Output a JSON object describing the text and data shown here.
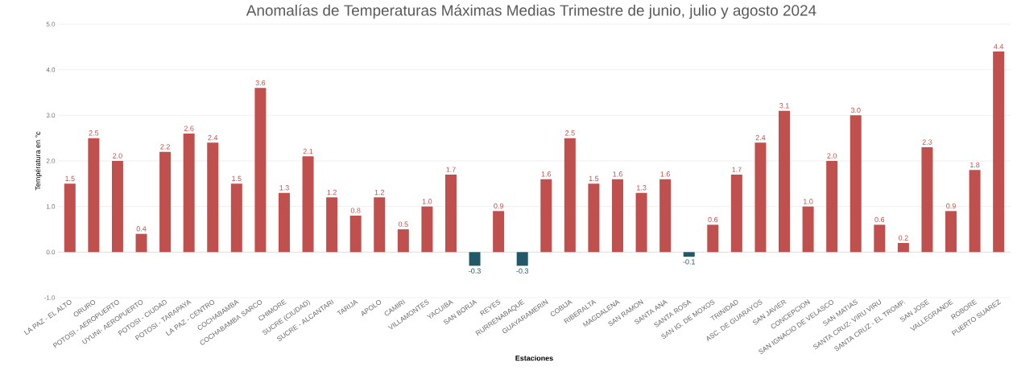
{
  "chart_data": {
    "type": "bar",
    "title": "Anomalías de Temperaturas Máximas Medias Trimestre de junio, julio y agosto 2024",
    "xlabel": "Estaciones",
    "ylabel": "Températura en °c",
    "categories": [
      "LA PAZ - EL ALTO",
      "ORURO",
      "POTOSI - AEROPUERTO",
      "UYUNI- AEROPUERTO",
      "POTOSI - CIUDAD",
      "POTOSI - TARAPAYA",
      "LA PAZ - CENTRO",
      "COCHABAMBA",
      "COCHABAMBA SARCO",
      "CHIMORE",
      "SUCRE (CIUDAD)",
      "SUCRE - ALCANTARI",
      "TARIJA",
      "APOLO",
      "CAMIRI",
      "VILLAMONTES",
      "YACUIBA",
      "SAN BORJA",
      "REYES",
      "RURRENABAQUE",
      "GUAYARAMERIN",
      "COBIJA",
      "RIBERALTA",
      "MAGDALENA",
      "SAN RAMON",
      "SANTA ANA",
      "SANTA ROSA",
      "SAN IG. DE MOXOS",
      "TRINIDAD",
      "ASC. DE GUARAYOS",
      "SAN JAVIER",
      "CONCEPCION",
      "SAN IGNACIO DE VELASCO",
      "SAN MATIAS",
      "SANTA CRUZ- VIRU VIRU",
      "SANTA CRUZ - EL TROMP.",
      "SAN JOSE",
      "VALLEGRANDE",
      "ROBORE",
      "PUERTO SUAREZ"
    ],
    "values": [
      1.5,
      2.5,
      2.0,
      0.4,
      2.2,
      2.6,
      2.4,
      1.5,
      3.6,
      1.3,
      2.1,
      1.2,
      0.8,
      1.2,
      0.5,
      1.0,
      1.7,
      -0.3,
      0.9,
      -0.3,
      1.6,
      2.5,
      1.5,
      1.6,
      1.3,
      1.6,
      -0.1,
      0.6,
      1.7,
      2.4,
      3.1,
      1.0,
      2.0,
      3.0,
      0.6,
      0.2,
      2.3,
      0.9,
      1.8,
      4.4
    ],
    "value_labels": [
      "1.5",
      "2.5",
      "2.0",
      "0.4",
      "2.2",
      "2.6",
      "2.4",
      "1.5",
      "3.6",
      "1.3",
      "2.1",
      "1.2",
      "0.8",
      "1.2",
      "0.5",
      "1.0",
      "1.7",
      "-0.3",
      "0.9",
      "-0.3",
      "1.6",
      "2.5",
      "1.5",
      "1.6",
      "1.3",
      "1.6",
      "-0.1",
      "0.6",
      "1.7",
      "2.4",
      "3.1",
      "1.0",
      "2.0",
      "3.0",
      "0.6",
      "0.2",
      "2.3",
      "0.9",
      "1.8",
      "4.4"
    ],
    "colors": [
      "#c0504d",
      "#c0504d",
      "#c0504d",
      "#c0504d",
      "#c0504d",
      "#c0504d",
      "#c0504d",
      "#c0504d",
      "#c0504d",
      "#c0504d",
      "#c0504d",
      "#c0504d",
      "#c0504d",
      "#c0504d",
      "#c0504d",
      "#c0504d",
      "#c0504d",
      "#215968",
      "#c0504d",
      "#215968",
      "#c0504d",
      "#c0504d",
      "#c0504d",
      "#c0504d",
      "#c0504d",
      "#c0504d",
      "#215968",
      "#c0504d",
      "#c0504d",
      "#c0504d",
      "#c0504d",
      "#c0504d",
      "#c0504d",
      "#c0504d",
      "#c0504d",
      "#c0504d",
      "#c0504d",
      "#c0504d",
      "#c0504d",
      "#c0504d"
    ],
    "ylim": [
      -1.0,
      5.0
    ],
    "yticks": [
      {
        "value": -1.0,
        "label": "-1.0"
      },
      {
        "value": 0.0,
        "label": "0.0"
      },
      {
        "value": 1.0,
        "label": "1.0"
      },
      {
        "value": 2.0,
        "label": "2.0"
      },
      {
        "value": 3.0,
        "label": "3.0"
      },
      {
        "value": 4.0,
        "label": "4.0"
      },
      {
        "value": 5.0,
        "label": "5.0"
      }
    ],
    "grid": "y"
  }
}
